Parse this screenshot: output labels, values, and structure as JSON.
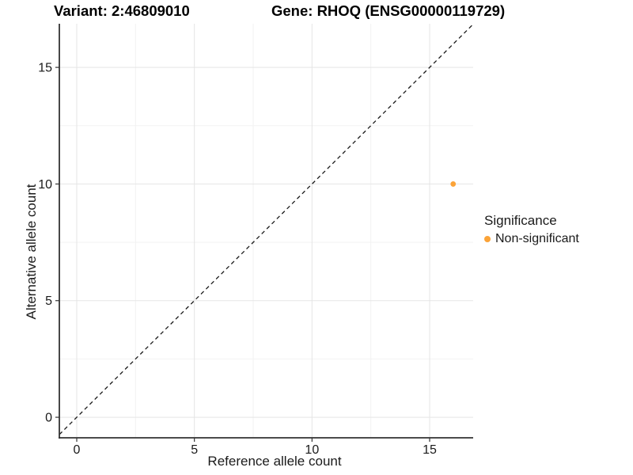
{
  "header": {
    "variant_title": "Variant: 2:46809010",
    "gene_title": "Gene: RHOQ (ENSG00000119729)"
  },
  "chart_data": {
    "type": "scatter",
    "title": "Variant: 2:46809010   Gene: RHOQ (ENSG00000119729)",
    "xlabel": "Reference allele count",
    "ylabel": "Alternative allele count",
    "points": [
      {
        "x": 16,
        "y": 10,
        "series": "Non-significant"
      }
    ],
    "identity_line": {
      "type": "abline",
      "slope": 1,
      "intercept": 0,
      "style": "dashed"
    },
    "x_ticks": [
      0,
      5,
      10,
      15
    ],
    "y_ticks": [
      0,
      5,
      10,
      15
    ],
    "x_minor_ticks": [
      2.5,
      7.5,
      12.5
    ],
    "y_minor_ticks": [
      2.5,
      7.5,
      12.5
    ],
    "xlim": [
      -0.74,
      16.85
    ],
    "ylim": [
      -0.88,
      16.87
    ],
    "grid": "on",
    "legend": {
      "title": "Significance",
      "position": "right",
      "items": [
        {
          "label": "Non-significant",
          "color": "#FBA338"
        }
      ]
    },
    "colors": {
      "point": "#FBA338",
      "axis_line": "#333333",
      "tick_text": "#1a1a1a",
      "grid_major": "#e5e5e5",
      "grid_minor": "#f2f2f2",
      "identity_line": "#1a1a1a",
      "background": "#ffffff"
    }
  }
}
